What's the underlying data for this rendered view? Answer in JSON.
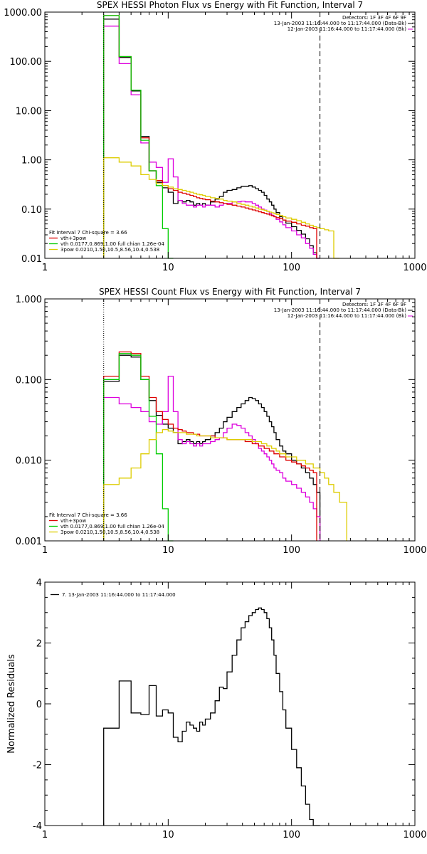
{
  "chart_data": [
    {
      "type": "line",
      "title": "SPEX HESSI Photon Flux vs Energy with Fit Function, Interval 7",
      "xscale": "log",
      "yscale": "log",
      "xlim": [
        1,
        1000
      ],
      "ylim": [
        0.01,
        1000
      ],
      "xticks": [
        1,
        10,
        100,
        1000
      ],
      "xtick_labels": [
        "1",
        "10",
        "100",
        "1000"
      ],
      "yticks": [
        0.01,
        0.1,
        1,
        10,
        100,
        1000
      ],
      "ytick_labels": [
        "0.01",
        "0.10",
        "1.00",
        "10.00",
        "100.00",
        "1000.00"
      ],
      "header_lines": [
        "Detectors: 1F 3F 4F 6F 9F",
        "13-Jan-2003 11:16:44.000 to 11:17:44.000 (Data-Bk)",
        "12-Jan-2003 11:16:44.000 to 11:17:44.000 (Bk)"
      ],
      "vlines": [
        {
          "x": 3,
          "style": "dotted"
        },
        {
          "x": 170,
          "style": "dashed"
        }
      ],
      "legend": {
        "position": "bottom-left",
        "title": "Fit Interval 7   Chi-square = 3.66",
        "entries": [
          {
            "label": "vth+3pow",
            "color": "#dd0000"
          },
          {
            "label": "vth 0.0177,0.869,1.00  full chian 1.26e-04",
            "color": "#00cc00"
          },
          {
            "label": "3pow 0.0210,1.50,10.5,8.56,10.4,0.538",
            "color": "#ddcc00"
          }
        ]
      },
      "edges": [
        3,
        3.5,
        4,
        4.5,
        5,
        5.5,
        6,
        6.5,
        7,
        7.5,
        8,
        8.5,
        9,
        9.5,
        10,
        11,
        12,
        13,
        14,
        15,
        16,
        17,
        18,
        19,
        20,
        22,
        24,
        26,
        28,
        30,
        33,
        36,
        39,
        42,
        45,
        48,
        51,
        54,
        57,
        60,
        63,
        66,
        69,
        72,
        75,
        80,
        85,
        90,
        100,
        110,
        120,
        130,
        140,
        150,
        160,
        170,
        185,
        200,
        220,
        245,
        280
      ],
      "series": [
        {
          "name": "Data-Bk",
          "color": "#000000",
          "values": [
            720,
            720,
            120,
            120,
            25,
            25,
            3.0,
            3.0,
            0.6,
            0.6,
            0.35,
            0.35,
            0.27,
            0.27,
            0.22,
            0.13,
            0.15,
            0.14,
            0.15,
            0.14,
            0.12,
            0.13,
            0.12,
            0.13,
            0.12,
            0.14,
            0.16,
            0.18,
            0.22,
            0.24,
            0.25,
            0.27,
            0.29,
            0.29,
            0.3,
            0.28,
            0.26,
            0.24,
            0.22,
            0.19,
            0.16,
            0.14,
            0.12,
            0.1,
            0.085,
            0.07,
            0.06,
            0.052,
            0.044,
            0.037,
            0.031,
            0.025,
            0.018,
            0.013,
            0.01
          ]
        },
        {
          "name": "Bk",
          "color": "#dd00dd",
          "values": [
            520,
            520,
            90,
            90,
            21,
            21,
            2.2,
            2.2,
            0.9,
            0.9,
            0.7,
            0.7,
            0.35,
            0.35,
            1.05,
            0.45,
            0.15,
            0.13,
            0.12,
            0.12,
            0.11,
            0.12,
            0.12,
            0.11,
            0.12,
            0.12,
            0.11,
            0.12,
            0.13,
            0.13,
            0.14,
            0.14,
            0.145,
            0.14,
            0.14,
            0.13,
            0.12,
            0.11,
            0.1,
            0.095,
            0.09,
            0.082,
            0.075,
            0.07,
            0.062,
            0.055,
            0.048,
            0.042,
            0.036,
            0.03,
            0.026,
            0.02,
            0.016,
            0.012,
            0.01
          ]
        },
        {
          "name": "vth+3pow",
          "color": "#dd0000",
          "values": [
            850,
            850,
            125,
            125,
            26,
            26,
            2.8,
            2.8,
            0.6,
            0.6,
            0.38,
            0.38,
            0.3,
            0.3,
            0.26,
            0.24,
            0.22,
            0.21,
            0.2,
            0.19,
            0.18,
            0.17,
            0.165,
            0.16,
            0.155,
            0.145,
            0.14,
            0.135,
            0.13,
            0.125,
            0.12,
            0.115,
            0.11,
            0.105,
            0.1,
            0.096,
            0.092,
            0.088,
            0.085,
            0.082,
            0.079,
            0.076,
            0.073,
            0.07,
            0.067,
            0.064,
            0.06,
            0.057,
            0.054,
            0.05,
            0.047,
            0.045,
            0.042,
            0.04
          ]
        },
        {
          "name": "vth",
          "color": "#00cc00",
          "values": [
            850,
            850,
            125,
            125,
            26,
            26,
            2.5,
            2.5,
            0.6,
            0.6,
            0.3,
            0.3,
            0.04,
            0.04,
            0.006
          ]
        },
        {
          "name": "3pow",
          "color": "#ddcc00",
          "values": [
            1.1,
            1.1,
            0.9,
            0.9,
            0.75,
            0.75,
            0.5,
            0.5,
            0.4,
            0.4,
            0.33,
            0.33,
            0.3,
            0.3,
            0.28,
            0.26,
            0.25,
            0.24,
            0.23,
            0.22,
            0.21,
            0.2,
            0.195,
            0.19,
            0.18,
            0.17,
            0.165,
            0.16,
            0.15,
            0.145,
            0.14,
            0.13,
            0.125,
            0.12,
            0.115,
            0.11,
            0.105,
            0.1,
            0.097,
            0.094,
            0.09,
            0.087,
            0.084,
            0.081,
            0.078,
            0.074,
            0.07,
            0.066,
            0.062,
            0.058,
            0.054,
            0.05,
            0.047,
            0.044,
            0.042,
            0.04,
            0.038,
            0.036,
            0.005
          ]
        }
      ]
    },
    {
      "type": "line",
      "title": "SPEX HESSI Count Flux vs Energy with Fit Function, Interval 7",
      "xscale": "log",
      "yscale": "log",
      "xlim": [
        1,
        1000
      ],
      "ylim": [
        0.001,
        1
      ],
      "xticks": [
        1,
        10,
        100,
        1000
      ],
      "xtick_labels": [
        "1",
        "10",
        "100",
        "1000"
      ],
      "yticks": [
        0.001,
        0.01,
        0.1,
        1
      ],
      "ytick_labels": [
        "0.001",
        "0.010",
        "0.100",
        "1.000"
      ],
      "header_lines": [
        "Detectors: 1F 3F 4F 6F 9F",
        "13-Jan-2003 11:16:44.000 to 11:17:44.000 (Data-Bk)",
        "12-Jan-2003 11:16:44.000 to 11:17:44.000 (Bk)"
      ],
      "vlines": [
        {
          "x": 3,
          "style": "dotted"
        },
        {
          "x": 170,
          "style": "dashed"
        }
      ],
      "legend": {
        "position": "bottom-left",
        "title": "Fit Interval 7   Chi-square = 3.66",
        "entries": [
          {
            "label": "vth+3pow",
            "color": "#dd0000"
          },
          {
            "label": "vth 0.0177,0.869,1.00  full chian 1.26e-04",
            "color": "#00cc00"
          },
          {
            "label": "3pow 0.0210,1.50,10.5,8.56,10.4,0.538",
            "color": "#ddcc00"
          }
        ]
      },
      "edges": [
        3,
        3.5,
        4,
        4.5,
        5,
        5.5,
        6,
        6.5,
        7,
        7.5,
        8,
        8.5,
        9,
        9.5,
        10,
        11,
        12,
        13,
        14,
        15,
        16,
        17,
        18,
        19,
        20,
        22,
        24,
        26,
        28,
        30,
        33,
        36,
        39,
        42,
        45,
        48,
        51,
        54,
        57,
        60,
        63,
        66,
        69,
        72,
        75,
        80,
        85,
        90,
        100,
        110,
        120,
        130,
        140,
        150,
        160,
        170,
        185,
        200,
        220,
        245,
        280
      ],
      "series": [
        {
          "name": "Data-Bk",
          "color": "#000000",
          "values": [
            0.095,
            0.095,
            0.2,
            0.2,
            0.19,
            0.19,
            0.1,
            0.1,
            0.055,
            0.055,
            0.036,
            0.036,
            0.028,
            0.028,
            0.025,
            0.022,
            0.016,
            0.017,
            0.018,
            0.017,
            0.016,
            0.017,
            0.016,
            0.017,
            0.018,
            0.02,
            0.022,
            0.025,
            0.03,
            0.034,
            0.04,
            0.045,
            0.05,
            0.055,
            0.06,
            0.058,
            0.055,
            0.05,
            0.045,
            0.04,
            0.035,
            0.03,
            0.026,
            0.022,
            0.018,
            0.015,
            0.013,
            0.012,
            0.01,
            0.009,
            0.008,
            0.007,
            0.006,
            0.005,
            0.004
          ]
        },
        {
          "name": "Bk",
          "color": "#dd00dd",
          "values": [
            0.06,
            0.06,
            0.05,
            0.05,
            0.045,
            0.045,
            0.04,
            0.04,
            0.03,
            0.03,
            0.028,
            0.028,
            0.04,
            0.04,
            0.11,
            0.04,
            0.018,
            0.016,
            0.017,
            0.016,
            0.015,
            0.016,
            0.015,
            0.016,
            0.016,
            0.017,
            0.018,
            0.019,
            0.022,
            0.025,
            0.028,
            0.027,
            0.025,
            0.022,
            0.02,
            0.018,
            0.016,
            0.014,
            0.013,
            0.012,
            0.011,
            0.01,
            0.009,
            0.008,
            0.0075,
            0.007,
            0.006,
            0.0055,
            0.005,
            0.0045,
            0.004,
            0.0035,
            0.003,
            0.0025,
            0.002
          ]
        },
        {
          "name": "vth+3pow",
          "color": "#dd0000",
          "values": [
            0.11,
            0.11,
            0.22,
            0.22,
            0.21,
            0.21,
            0.11,
            0.11,
            0.06,
            0.06,
            0.04,
            0.04,
            0.032,
            0.032,
            0.028,
            0.025,
            0.024,
            0.023,
            0.022,
            0.022,
            0.021,
            0.021,
            0.02,
            0.02,
            0.02,
            0.02,
            0.019,
            0.019,
            0.019,
            0.018,
            0.018,
            0.018,
            0.018,
            0.017,
            0.017,
            0.016,
            0.016,
            0.015,
            0.015,
            0.014,
            0.014,
            0.013,
            0.013,
            0.012,
            0.012,
            0.011,
            0.011,
            0.01,
            0.0095,
            0.009,
            0.0085,
            0.008,
            0.0075,
            0.007
          ]
        },
        {
          "name": "vth",
          "color": "#00cc00",
          "values": [
            0.1,
            0.1,
            0.21,
            0.21,
            0.2,
            0.2,
            0.1,
            0.1,
            0.035,
            0.035,
            0.012,
            0.012,
            0.0025,
            0.0025,
            0.0005
          ]
        },
        {
          "name": "3pow",
          "color": "#ddcc00",
          "values": [
            0.005,
            0.005,
            0.006,
            0.006,
            0.008,
            0.008,
            0.012,
            0.012,
            0.018,
            0.018,
            0.022,
            0.022,
            0.024,
            0.024,
            0.023,
            0.022,
            0.022,
            0.022,
            0.021,
            0.021,
            0.021,
            0.02,
            0.02,
            0.02,
            0.02,
            0.019,
            0.019,
            0.019,
            0.019,
            0.018,
            0.018,
            0.018,
            0.018,
            0.018,
            0.018,
            0.017,
            0.017,
            0.017,
            0.016,
            0.016,
            0.015,
            0.015,
            0.014,
            0.014,
            0.013,
            0.012,
            0.012,
            0.011,
            0.011,
            0.01,
            0.01,
            0.009,
            0.009,
            0.008,
            0.008,
            0.007,
            0.006,
            0.005,
            0.004,
            0.003
          ]
        }
      ]
    },
    {
      "type": "line",
      "title": "",
      "xscale": "log",
      "yscale": "linear",
      "xlim": [
        1,
        1000
      ],
      "ylim": [
        -4,
        4
      ],
      "xticks": [
        1,
        10,
        100,
        1000
      ],
      "xtick_labels": [
        "1",
        "10",
        "100",
        "1000"
      ],
      "yticks": [
        -4,
        -2,
        0,
        2,
        4
      ],
      "ytick_labels": [
        "-4",
        "-2",
        "0",
        "2",
        "4"
      ],
      "ylabel": "Normalized Residuals",
      "legend": {
        "position": "top-left",
        "title": "",
        "entries": [
          {
            "label": "7. 13-Jan-2003 11:16:44.000 to 11:17:44.000",
            "color": "#000000"
          }
        ]
      },
      "edges": [
        3,
        3.5,
        4,
        4.5,
        5,
        5.5,
        6,
        6.5,
        7,
        7.5,
        8,
        8.5,
        9,
        9.5,
        10,
        11,
        12,
        13,
        14,
        15,
        16,
        17,
        18,
        19,
        20,
        22,
        24,
        26,
        28,
        30,
        33,
        36,
        39,
        42,
        45,
        48,
        51,
        54,
        57,
        60,
        63,
        66,
        69,
        72,
        75,
        80,
        85,
        90,
        100,
        110,
        120,
        130,
        140,
        150,
        160,
        170
      ],
      "series": [
        {
          "name": "7. 13-Jan-2003 11:16:44.000 to 11:17:44.000",
          "color": "#000000",
          "values": [
            -0.8,
            -0.8,
            0.75,
            0.75,
            -0.3,
            -0.3,
            -0.35,
            -0.35,
            0.6,
            0.6,
            -0.4,
            -0.4,
            -0.2,
            -0.2,
            -0.3,
            -1.1,
            -1.25,
            -0.9,
            -0.6,
            -0.7,
            -0.8,
            -0.9,
            -0.6,
            -0.7,
            -0.5,
            -0.3,
            0.1,
            0.55,
            0.5,
            1.05,
            1.6,
            2.1,
            2.5,
            2.7,
            2.9,
            3.0,
            3.1,
            3.15,
            3.1,
            3.0,
            2.8,
            2.5,
            2.1,
            1.6,
            1.0,
            0.4,
            -0.2,
            -0.8,
            -1.5,
            -2.1,
            -2.7,
            -3.3,
            -3.8,
            -4.3,
            -4.8
          ]
        }
      ]
    }
  ]
}
